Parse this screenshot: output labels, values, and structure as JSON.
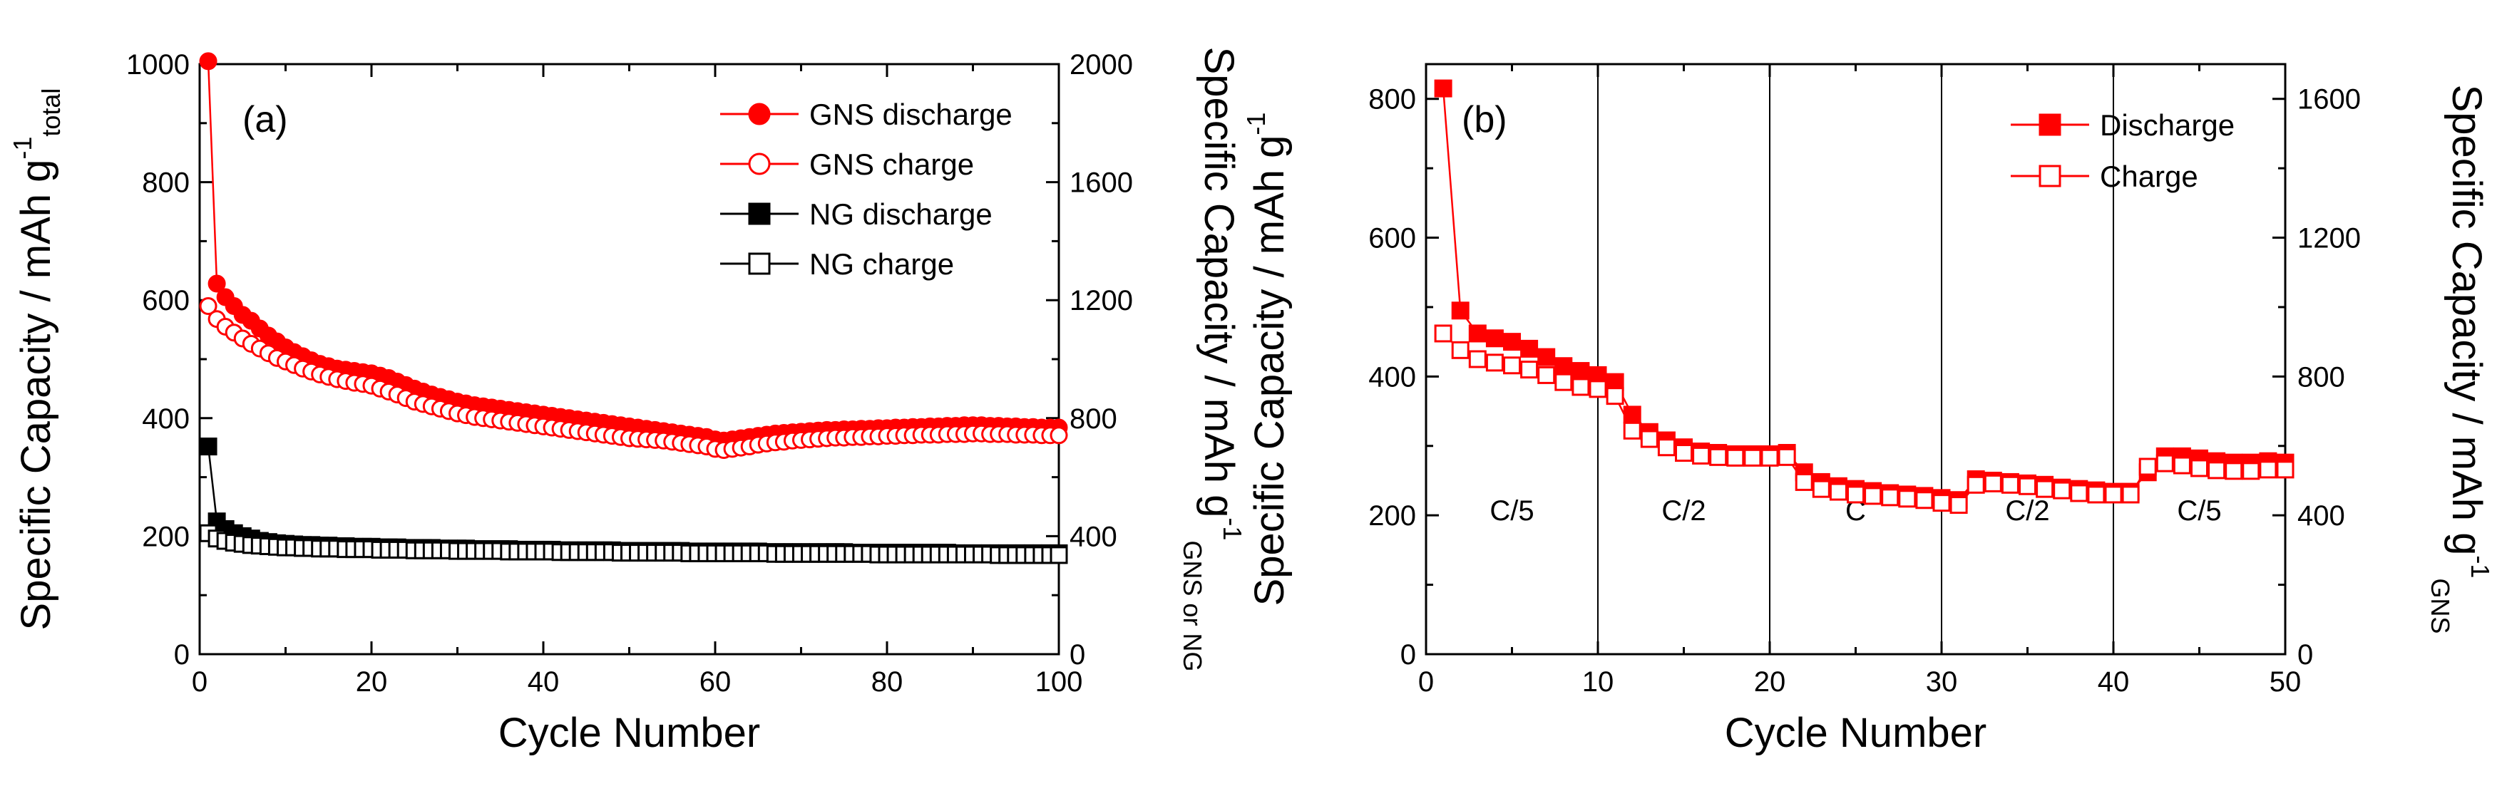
{
  "chart_data": [
    {
      "panel_label": "(a)",
      "type": "scatter",
      "xlabel": "Cycle Number",
      "ylabel_left": "Specific Capacity / mAh g",
      "ylabel_left_sup": "-1",
      "ylabel_left_sub": "total",
      "ylabel_right": "Specific Capacity / mAh g",
      "ylabel_right_sup": "-1",
      "ylabel_right_sub": "GNS or NG",
      "xlim": [
        0,
        100
      ],
      "ylim_left": [
        0,
        1000
      ],
      "ylim_right": [
        0,
        2000
      ],
      "xticks": [
        "0",
        "20",
        "40",
        "60",
        "80",
        "100"
      ],
      "yticks_left": [
        "0",
        "200",
        "400",
        "600",
        "800",
        "1000"
      ],
      "yticks_right": [
        "0",
        "400",
        "800",
        "1200",
        "1600",
        "2000"
      ],
      "legend_position": "top-right",
      "x": [
        1,
        2,
        3,
        4,
        5,
        6,
        7,
        8,
        9,
        10,
        11,
        12,
        13,
        14,
        15,
        16,
        17,
        18,
        19,
        20,
        21,
        22,
        23,
        24,
        25,
        26,
        27,
        28,
        29,
        30,
        31,
        32,
        33,
        34,
        35,
        36,
        37,
        38,
        39,
        40,
        41,
        42,
        43,
        44,
        45,
        46,
        47,
        48,
        49,
        50,
        51,
        52,
        53,
        54,
        55,
        56,
        57,
        58,
        59,
        60,
        61,
        62,
        63,
        64,
        65,
        66,
        67,
        68,
        69,
        70,
        71,
        72,
        73,
        74,
        75,
        76,
        77,
        78,
        79,
        80,
        81,
        82,
        83,
        84,
        85,
        86,
        87,
        88,
        89,
        90,
        91,
        92,
        93,
        94,
        95,
        96,
        97,
        98,
        99,
        100
      ],
      "series": [
        {
          "name": "GNS discharge",
          "color": "#ff0000",
          "marker": "circle-filled",
          "values": [
            1005,
            628,
            605,
            590,
            575,
            565,
            552,
            540,
            530,
            520,
            512,
            505,
            498,
            492,
            488,
            484,
            482,
            480,
            478,
            476,
            472,
            468,
            462,
            456,
            450,
            445,
            440,
            436,
            432,
            428,
            425,
            422,
            420,
            418,
            416,
            414,
            412,
            410,
            408,
            406,
            404,
            402,
            400,
            398,
            396,
            394,
            392,
            390,
            388,
            386,
            384,
            382,
            380,
            378,
            376,
            374,
            372,
            370,
            368,
            364,
            362,
            364,
            366,
            368,
            370,
            372,
            374,
            375,
            376,
            377,
            378,
            379,
            380,
            380,
            381,
            381,
            382,
            382,
            383,
            383,
            384,
            384,
            385,
            385,
            386,
            386,
            387,
            387,
            388,
            388,
            388,
            387,
            387,
            386,
            386,
            385,
            385,
            384,
            384,
            384
          ]
        },
        {
          "name": "GNS charge",
          "color": "#ff0000",
          "marker": "circle-open",
          "values": [
            590,
            568,
            555,
            545,
            535,
            526,
            518,
            510,
            502,
            496,
            490,
            484,
            479,
            474,
            470,
            466,
            463,
            460,
            458,
            455,
            450,
            445,
            440,
            434,
            428,
            424,
            420,
            416,
            412,
            408,
            405,
            402,
            400,
            398,
            396,
            394,
            392,
            390,
            388,
            386,
            384,
            382,
            380,
            378,
            376,
            374,
            372,
            370,
            368,
            366,
            365,
            364,
            363,
            362,
            360,
            358,
            356,
            354,
            352,
            348,
            346,
            348,
            350,
            352,
            355,
            357,
            359,
            360,
            362,
            363,
            364,
            365,
            366,
            367,
            367,
            368,
            368,
            369,
            369,
            370,
            370,
            371,
            371,
            372,
            372,
            372,
            373,
            373,
            373,
            374,
            374,
            373,
            373,
            373,
            372,
            372,
            372,
            371,
            371,
            371
          ]
        },
        {
          "name": "NG discharge",
          "color": "#000000",
          "marker": "square-filled",
          "values": [
            352,
            225,
            212,
            205,
            200,
            196,
            192,
            190,
            188,
            187,
            186,
            185,
            185,
            184,
            184,
            183,
            183,
            182,
            182,
            182,
            181,
            181,
            181,
            180,
            180,
            180,
            180,
            179,
            179,
            179,
            179,
            178,
            178,
            178,
            178,
            178,
            177,
            177,
            177,
            177,
            177,
            176,
            176,
            176,
            176,
            176,
            176,
            176,
            175,
            175,
            175,
            175,
            175,
            175,
            175,
            175,
            174,
            174,
            174,
            174,
            174,
            174,
            174,
            174,
            174,
            173,
            173,
            173,
            173,
            173,
            173,
            173,
            173,
            173,
            173,
            172,
            172,
            172,
            172,
            172,
            172,
            172,
            172,
            172,
            172,
            172,
            172,
            171,
            171,
            171,
            171,
            171,
            171,
            171,
            171,
            171,
            171,
            171,
            171,
            171
          ]
        },
        {
          "name": "NG charge",
          "color": "#000000",
          "marker": "square-open",
          "values": [
            205,
            196,
            192,
            189,
            187,
            185,
            184,
            183,
            182,
            181,
            181,
            180,
            180,
            179,
            179,
            179,
            178,
            178,
            178,
            178,
            177,
            177,
            177,
            177,
            176,
            176,
            176,
            176,
            176,
            175,
            175,
            175,
            175,
            175,
            175,
            174,
            174,
            174,
            174,
            174,
            174,
            173,
            173,
            173,
            173,
            173,
            173,
            173,
            172,
            172,
            172,
            172,
            172,
            172,
            172,
            172,
            171,
            171,
            171,
            171,
            171,
            171,
            171,
            171,
            171,
            171,
            170,
            170,
            170,
            170,
            170,
            170,
            170,
            170,
            170,
            170,
            170,
            170,
            169,
            169,
            169,
            169,
            169,
            169,
            169,
            169,
            169,
            169,
            169,
            169,
            169,
            169,
            168,
            168,
            168,
            168,
            168,
            168,
            168,
            168
          ]
        }
      ]
    },
    {
      "panel_label": "(b)",
      "type": "scatter",
      "xlabel": "Cycle Number",
      "ylabel_left": "Specific Capacity / mAh g",
      "ylabel_left_sup": "-1",
      "ylabel_right": "Specific Capacity / mAh g",
      "ylabel_right_sup": "-1",
      "ylabel_right_sub": "GNS",
      "xlim": [
        0,
        50
      ],
      "ylim_left": [
        0,
        850
      ],
      "ylim_right": [
        0,
        1700
      ],
      "xticks": [
        "0",
        "10",
        "20",
        "30",
        "40",
        "50"
      ],
      "yticks_left": [
        "0",
        "200",
        "400",
        "600",
        "800"
      ],
      "yticks_right": [
        "0",
        "400",
        "800",
        "1200",
        "1600"
      ],
      "legend_position": "top-right",
      "region_dividers": [
        10,
        20,
        30,
        40
      ],
      "regions": [
        "C/5",
        "C/2",
        "C",
        "C/2",
        "C/5"
      ],
      "x": [
        1,
        2,
        3,
        4,
        5,
        6,
        7,
        8,
        9,
        10,
        11,
        12,
        13,
        14,
        15,
        16,
        17,
        18,
        19,
        20,
        21,
        22,
        23,
        24,
        25,
        26,
        27,
        28,
        29,
        30,
        31,
        32,
        33,
        34,
        35,
        36,
        37,
        38,
        39,
        40,
        41,
        42,
        43,
        44,
        45,
        46,
        47,
        48,
        49,
        50
      ],
      "series": [
        {
          "name": "Discharge",
          "color": "#ff0000",
          "marker": "square-filled",
          "values": [
            815,
            495,
            462,
            455,
            450,
            440,
            428,
            415,
            408,
            402,
            392,
            345,
            320,
            308,
            298,
            292,
            290,
            288,
            288,
            288,
            290,
            262,
            248,
            242,
            238,
            235,
            232,
            230,
            228,
            225,
            222,
            252,
            250,
            248,
            246,
            244,
            240,
            238,
            236,
            234,
            234,
            262,
            285,
            285,
            282,
            278,
            276,
            276,
            278,
            276
          ]
        },
        {
          "name": "Charge",
          "color": "#ff0000",
          "marker": "square-open",
          "values": [
            462,
            438,
            425,
            420,
            416,
            410,
            402,
            392,
            385,
            382,
            372,
            322,
            310,
            298,
            290,
            286,
            284,
            283,
            283,
            283,
            284,
            248,
            238,
            234,
            230,
            228,
            226,
            224,
            222,
            218,
            215,
            244,
            246,
            244,
            242,
            238,
            236,
            232,
            230,
            230,
            230,
            270,
            275,
            272,
            268,
            265,
            264,
            264,
            266,
            266
          ]
        }
      ]
    }
  ]
}
